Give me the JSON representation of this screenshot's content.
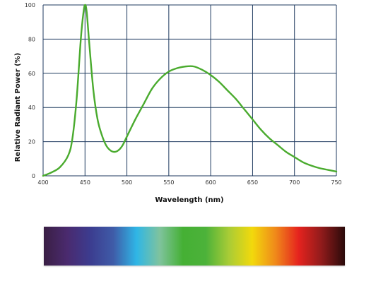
{
  "chart_data": {
    "type": "line",
    "xlabel": "Wavelength (nm)",
    "ylabel": "Relative Radiant Power (%)",
    "xlim": [
      400,
      750
    ],
    "ylim": [
      0,
      100
    ],
    "x_ticks": [
      400,
      450,
      500,
      550,
      600,
      650,
      700,
      750
    ],
    "y_ticks": [
      0,
      20,
      40,
      60,
      80,
      100
    ],
    "grid": true,
    "series": [
      {
        "color": "#4aab2e",
        "x": [
          400,
          410,
          420,
          430,
          435,
          440,
          445,
          448,
          450,
          452,
          455,
          460,
          465,
          470,
          475,
          480,
          485,
          490,
          495,
          500,
          510,
          520,
          530,
          540,
          550,
          560,
          570,
          580,
          590,
          600,
          610,
          620,
          630,
          640,
          650,
          660,
          670,
          680,
          690,
          700,
          710,
          720,
          730,
          740,
          750
        ],
        "y": [
          0,
          2,
          5,
          12,
          22,
          45,
          80,
          95,
          100,
          96,
          78,
          50,
          33,
          24,
          18,
          15,
          14,
          15,
          18,
          23,
          33,
          42,
          51,
          57,
          61,
          63,
          64,
          64,
          62,
          59,
          55,
          50,
          45,
          39,
          33,
          27,
          22,
          18,
          14,
          11,
          8,
          6,
          4.5,
          3.5,
          2.5
        ]
      }
    ]
  },
  "spectrum": {
    "colors": [
      "#3a1f44",
      "#4a2a6e",
      "#3c3c8f",
      "#3f5ca8",
      "#2fb6e6",
      "#7fc39d",
      "#45b034",
      "#4cb23a",
      "#a9cc36",
      "#f2d90c",
      "#f08a1a",
      "#e5231e",
      "#8f1b1b",
      "#2a0a0a"
    ]
  }
}
